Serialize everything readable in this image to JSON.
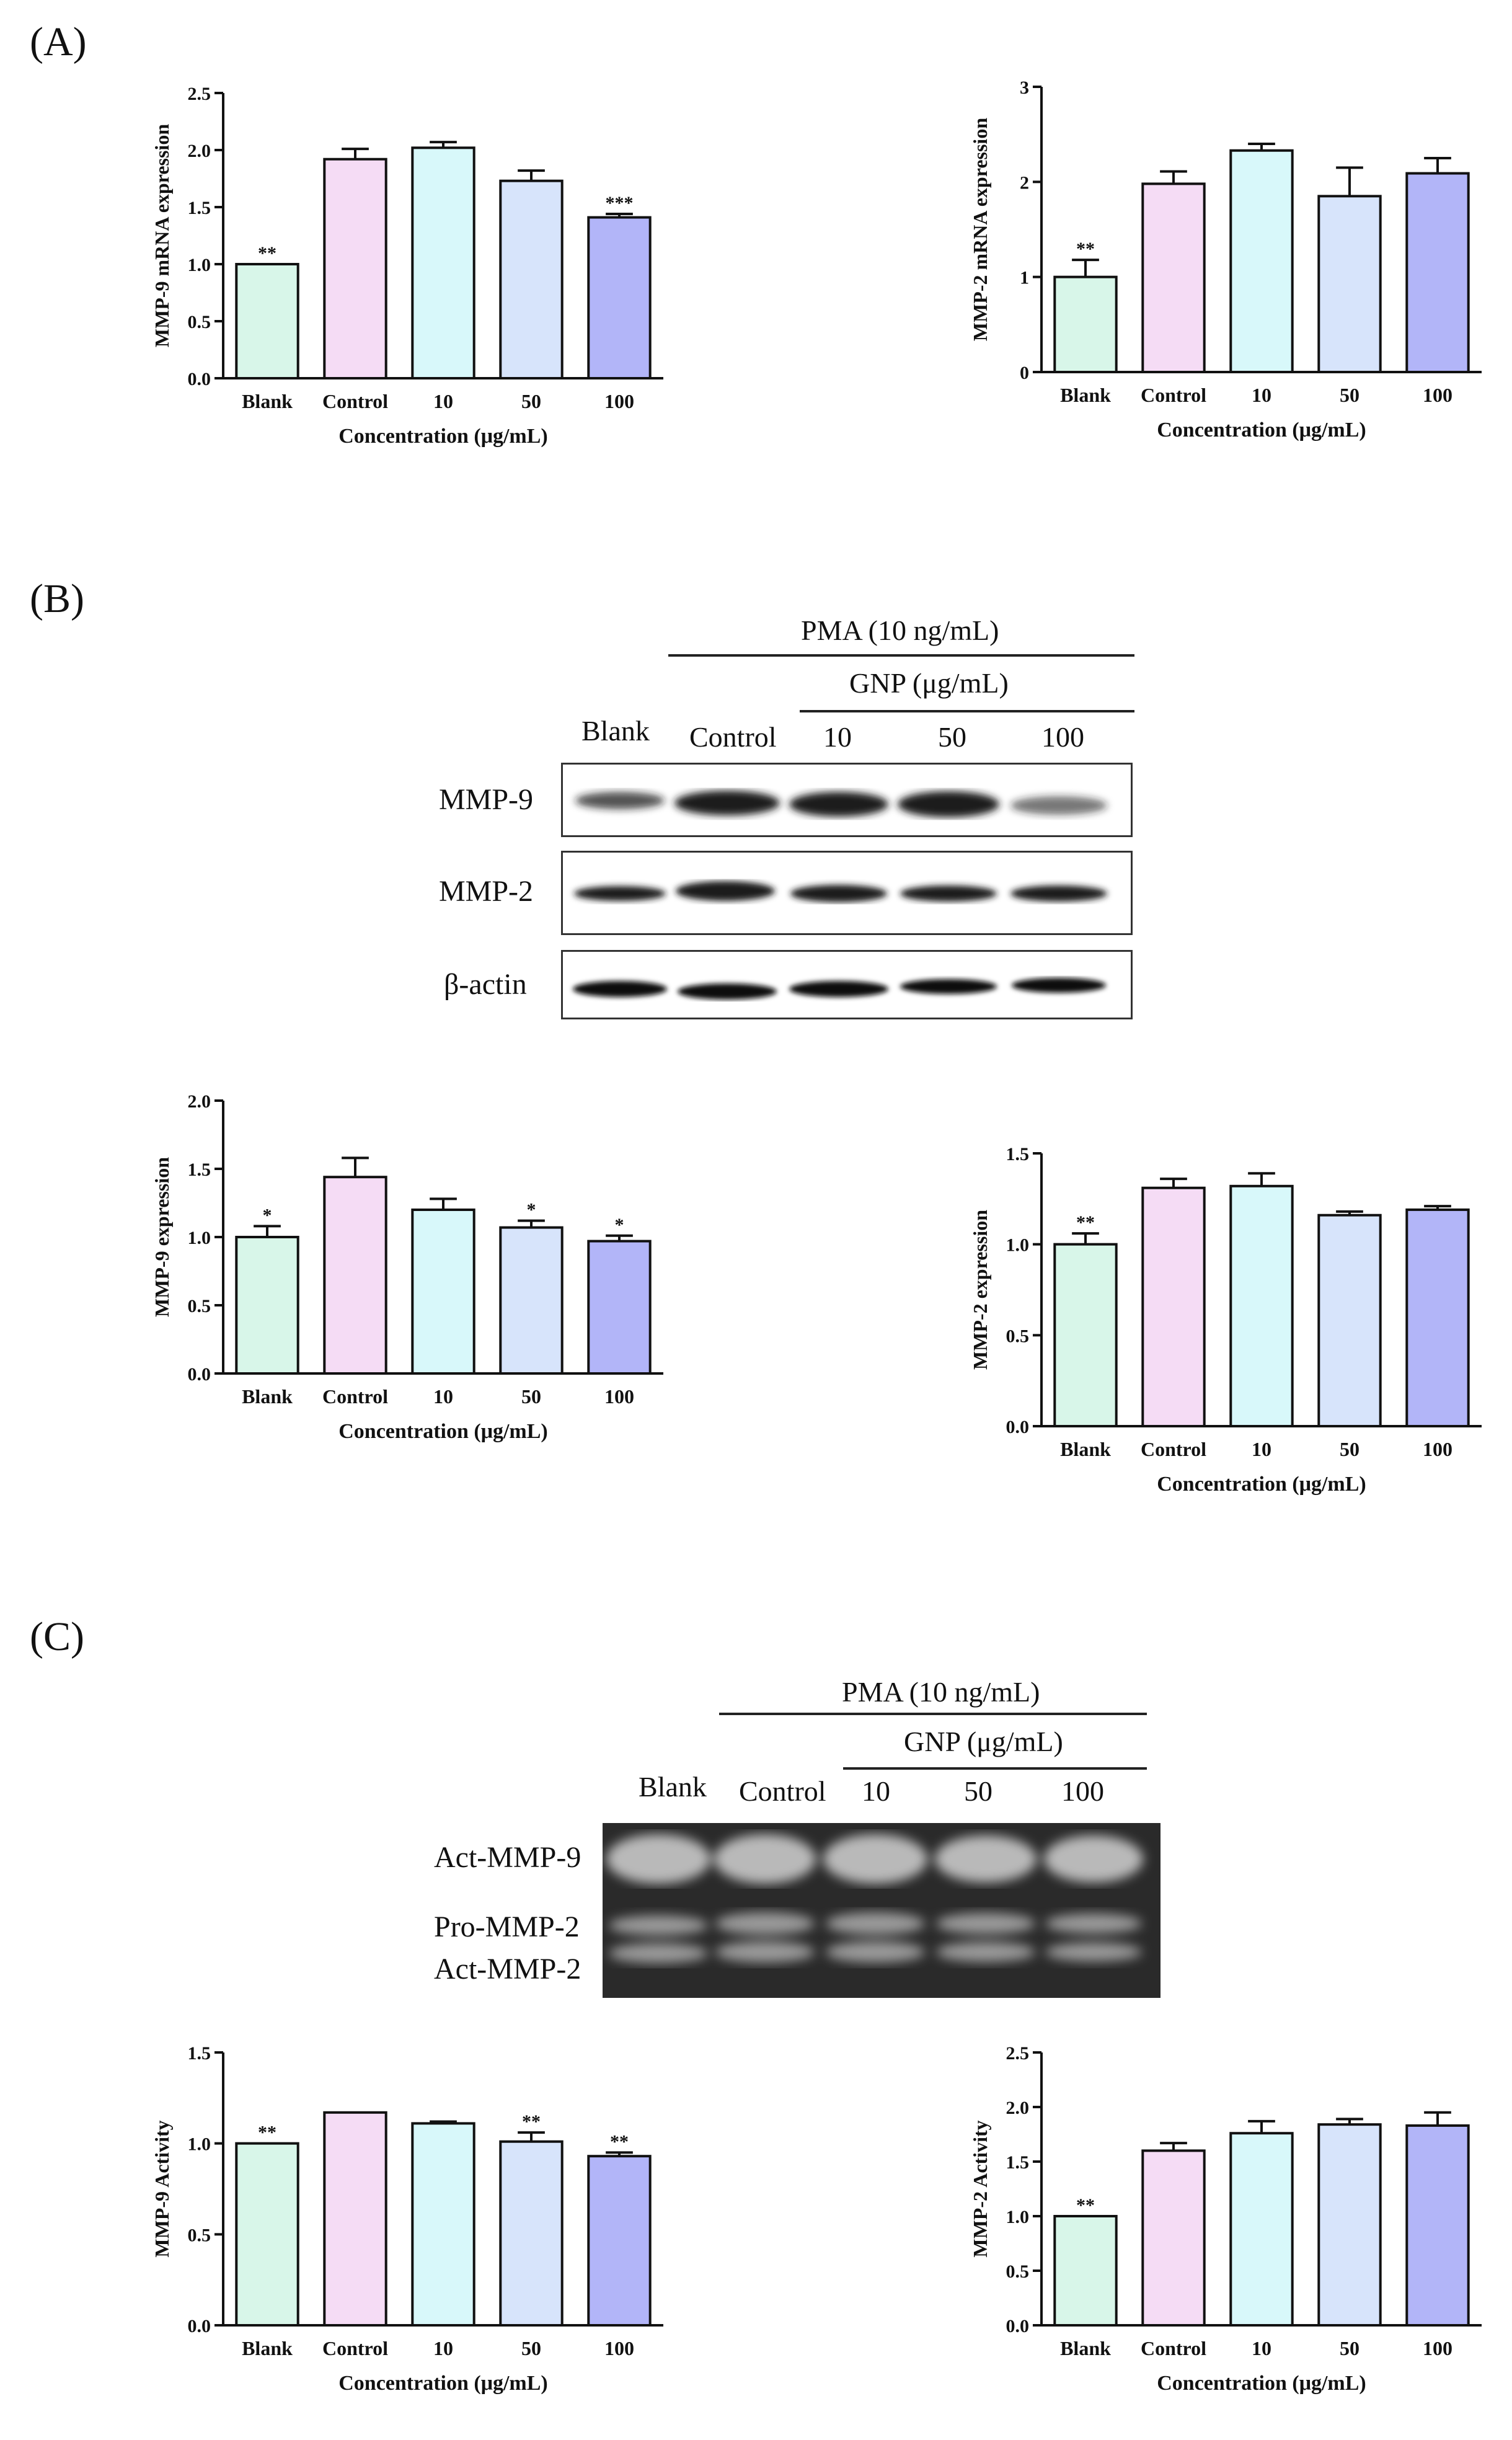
{
  "panels": {
    "a": "(A)",
    "b": "(B)",
    "c": "(C)"
  },
  "colors": [
    "#d8f6e9",
    "#f5dcf5",
    "#d8f8fa",
    "#d7e4fb",
    "#b2b5f8"
  ],
  "chart_data": [
    {
      "id": "a-mmp9",
      "type": "bar",
      "serif": true,
      "categories": [
        "Blank",
        "Control",
        "10",
        "50",
        "100"
      ],
      "values": [
        1.0,
        1.92,
        2.02,
        1.73,
        1.41
      ],
      "errors": [
        0.0,
        0.09,
        0.05,
        0.09,
        0.03
      ],
      "sig": [
        "**",
        "",
        "",
        "",
        "***"
      ],
      "ylabel": "MMP-9 mRNA expression",
      "xlabel": "Concentration (μg/mL)",
      "ylim": [
        0,
        2.5
      ],
      "yticks": [
        "0.0",
        "0.5",
        "1.0",
        "1.5",
        "2.0",
        "2.5"
      ]
    },
    {
      "id": "a-mmp2",
      "type": "bar",
      "serif": false,
      "categories": [
        "Blank",
        "Control",
        "10",
        "50",
        "100"
      ],
      "values": [
        1.0,
        1.98,
        2.33,
        1.85,
        2.09
      ],
      "errors": [
        0.18,
        0.13,
        0.07,
        0.3,
        0.16
      ],
      "sig": [
        "**",
        "",
        "",
        "",
        ""
      ],
      "ylabel": "MMP-2 mRNA expression",
      "xlabel": "Concentration (μg/mL)",
      "ylim": [
        0,
        3
      ],
      "yticks": [
        "0",
        "1",
        "2",
        "3"
      ]
    },
    {
      "id": "b-mmp9",
      "type": "bar",
      "serif": true,
      "categories": [
        "Blank",
        "Control",
        "10",
        "50",
        "100"
      ],
      "values": [
        1.0,
        1.44,
        1.2,
        1.07,
        0.97
      ],
      "errors": [
        0.08,
        0.14,
        0.08,
        0.05,
        0.04
      ],
      "sig": [
        "*",
        "",
        "",
        "*",
        "*"
      ],
      "ylabel": "MMP-9 expression",
      "xlabel": "Concentration (μg/mL)",
      "ylim": [
        0,
        2.0
      ],
      "yticks": [
        "0.0",
        "0.5",
        "1.0",
        "1.5",
        "2.0"
      ]
    },
    {
      "id": "b-mmp2",
      "type": "bar",
      "serif": false,
      "categories": [
        "Blank",
        "Control",
        "10",
        "50",
        "100"
      ],
      "values": [
        1.0,
        1.31,
        1.32,
        1.16,
        1.19
      ],
      "errors": [
        0.06,
        0.05,
        0.07,
        0.02,
        0.02
      ],
      "sig": [
        "**",
        "",
        "",
        "",
        ""
      ],
      "ylabel": "MMP-2 expression",
      "xlabel": "Concentration (μg/mL)",
      "ylim": [
        0,
        1.5
      ],
      "yticks": [
        "0.0",
        "0.5",
        "1.0",
        "1.5"
      ]
    },
    {
      "id": "c-mmp9",
      "type": "bar",
      "serif": true,
      "categories": [
        "Blank",
        "Control",
        "10",
        "50",
        "100"
      ],
      "values": [
        1.0,
        1.17,
        1.11,
        1.01,
        0.93
      ],
      "errors": [
        0.0,
        0.0,
        0.01,
        0.05,
        0.02
      ],
      "sig": [
        "**",
        "",
        "",
        "**",
        "**"
      ],
      "ylabel": "MMP-9 Activity",
      "xlabel": "Concentration  (μg/mL)",
      "ylim": [
        0,
        1.5
      ],
      "yticks": [
        "0.0",
        "0.5",
        "1.0",
        "1.5"
      ]
    },
    {
      "id": "c-mmp2",
      "type": "bar",
      "serif": false,
      "categories": [
        "Blank",
        "Control",
        "10",
        "50",
        "100"
      ],
      "values": [
        1.0,
        1.6,
        1.76,
        1.84,
        1.83
      ],
      "errors": [
        0.0,
        0.07,
        0.11,
        0.05,
        0.12
      ],
      "sig": [
        "**",
        "",
        "",
        "",
        ""
      ],
      "ylabel": "MMP-2 Activity",
      "xlabel": "Concentration (μg/mL)",
      "ylim": [
        0,
        2.5
      ],
      "yticks": [
        "0.0",
        "0.5",
        "1.0",
        "1.5",
        "2.0",
        "2.5"
      ]
    }
  ],
  "western": {
    "pma": "PMA (10 ng/mL)",
    "gnp": "GNP (μg/mL)",
    "lanes": [
      "Blank",
      "Control",
      "10",
      "50",
      "100"
    ],
    "rows": [
      "MMP-9",
      "MMP-2",
      "β-actin"
    ]
  },
  "zymogram": {
    "pma": "PMA (10 ng/mL)",
    "gnp": "GNP (μg/mL)",
    "lanes": [
      "Blank",
      "Control",
      "10",
      "50",
      "100"
    ],
    "rows": [
      "Act-MMP-9",
      "Pro-MMP-2",
      "Act-MMP-2"
    ]
  }
}
